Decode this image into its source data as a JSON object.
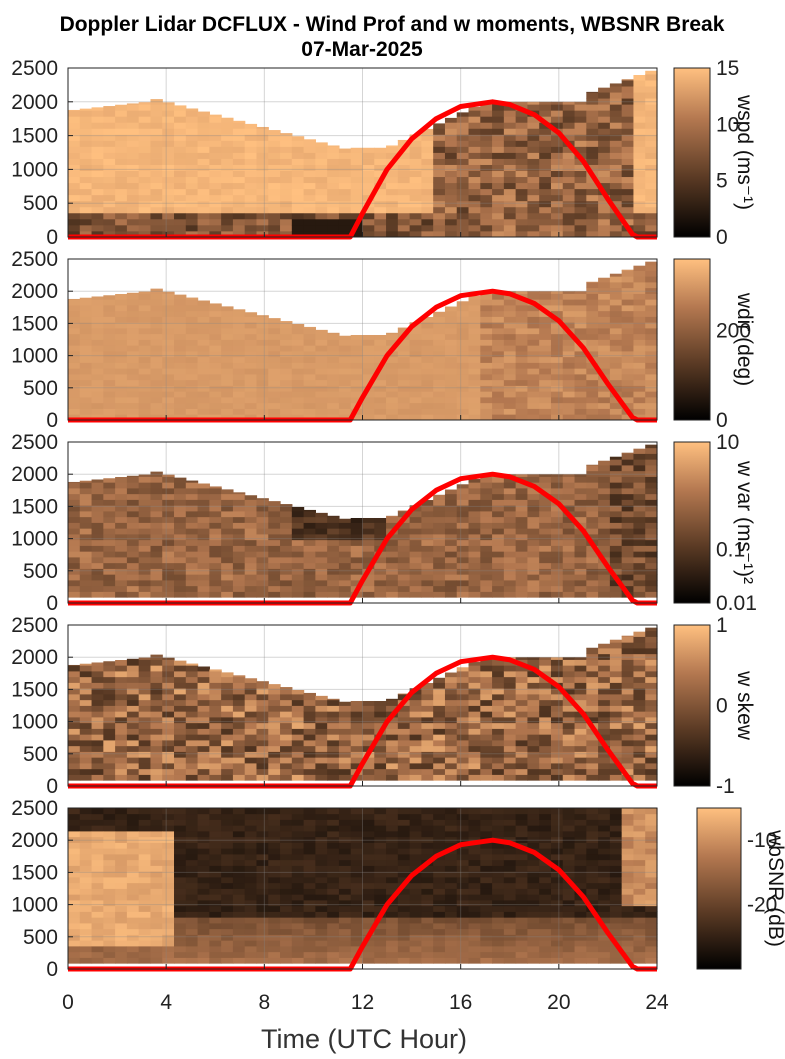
{
  "chart_data": {
    "title_line1": "Doppler Lidar DCFLUX - Wind Prof and w moments, WBSNR Break",
    "title_line2": "07-Mar-2025",
    "xlabel": "Time (UTC Hour)",
    "x_ticks": [
      "0",
      "4",
      "8",
      "12",
      "16",
      "20",
      "24"
    ],
    "y_ticks": [
      "0",
      "500",
      "1000",
      "1500",
      "2000",
      "2500"
    ],
    "xlim": [
      0,
      24
    ],
    "ylim": [
      0,
      2500
    ],
    "colormap": [
      "#000000",
      "#5a3a24",
      "#b47850",
      "#ffc080"
    ],
    "overlay_color": "#ff0000",
    "overlay_curve": {
      "type": "line",
      "x": [
        0,
        11.5,
        12,
        13,
        14,
        15,
        16,
        17.3,
        18,
        19,
        20,
        21,
        22,
        23,
        23.2,
        24
      ],
      "y": [
        0,
        0,
        350,
        1000,
        1450,
        1750,
        1930,
        2000,
        1960,
        1810,
        1540,
        1120,
        560,
        40,
        0,
        0
      ]
    },
    "panels": [
      {
        "type": "heatmap",
        "colorbar_label": "wspd (ms⁻¹)",
        "clim": [
          0,
          15
        ],
        "cbar_ticks": [
          "0",
          "5",
          "10",
          "15"
        ]
      },
      {
        "type": "heatmap",
        "colorbar_label": "wdir (deg)",
        "clim": [
          0,
          360
        ],
        "cbar_ticks": [
          "0",
          "200"
        ]
      },
      {
        "type": "heatmap",
        "colorbar_label": "w var (ms⁻¹)²",
        "clim": [
          0.01,
          10
        ],
        "cbar_ticks": [
          "0.01",
          "0.1",
          "10"
        ]
      },
      {
        "type": "heatmap",
        "colorbar_label": "w skew",
        "clim": [
          -1,
          1
        ],
        "cbar_ticks": [
          "-1",
          "0",
          "1"
        ]
      },
      {
        "type": "heatmap",
        "colorbar_label": "wbSNR (dB)",
        "clim": [
          -30,
          -5
        ],
        "cbar_ticks": [
          "-20",
          "-10"
        ]
      }
    ]
  }
}
